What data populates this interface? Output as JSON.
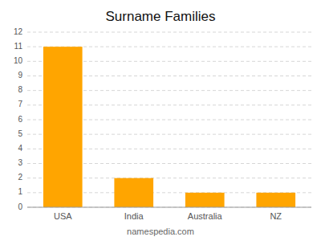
{
  "chart_data": {
    "type": "bar",
    "title": "Surname Families",
    "categories": [
      "USA",
      "India",
      "Australia",
      "NZ"
    ],
    "values": [
      11,
      2,
      1,
      1
    ],
    "color": "#FFA500",
    "ylim": [
      0,
      12
    ],
    "yticks": [
      0,
      1,
      2,
      3,
      4,
      5,
      6,
      7,
      8,
      9,
      10,
      11,
      12
    ],
    "grid": true,
    "annotations": [
      "namespedia.com"
    ]
  }
}
